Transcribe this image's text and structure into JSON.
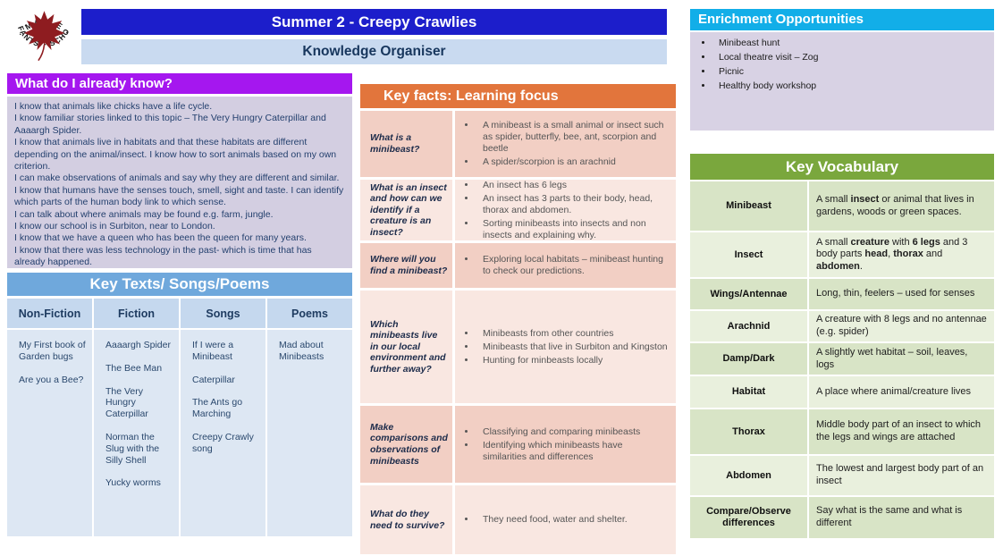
{
  "colors": {
    "title_blue": "#1c1ecb",
    "subtitle_blue": "#c9daf0",
    "purple": "#a517ef",
    "lavender": "#d3cee1",
    "texts_banner_blue": "#6fa8dc",
    "orange": "#e2753c",
    "facts_row_dark": "#f2cfc4",
    "facts_row_light": "#f9e7e1",
    "cyan": "#12aee8",
    "green": "#7aa73d",
    "vocab_row_dark": "#d8e4c6",
    "vocab_row_light": "#e9f0dd",
    "leaf_red": "#8e1c20"
  },
  "logo": {
    "arc_top": "· MAPLE ·",
    "arc_bottom": "INFANTS' · SCHOOL"
  },
  "header": {
    "title": "Summer 2 - Creepy Crawlies",
    "subtitle": "Knowledge Organiser"
  },
  "already_know": {
    "title": "What do I already know?",
    "lines": [
      "I know that animals like chicks have a life cycle.",
      "I know familiar stories linked to this topic – The Very Hungry Caterpillar and Aaaargh Spider.",
      "I know that animals live in habitats and that these habitats are different depending on the animal/insect. I know how to sort animals based on my own criterion.",
      "I can make observations of animals and say why they are different and similar.",
      "I know that humans have the senses touch, smell, sight and taste. I can identify which parts of the human body link to which sense.",
      "I can talk about where animals may be found e.g. farm, jungle.",
      "I know our school is in Surbiton, near to London.",
      "I know that we have a queen who has been the queen for many years.",
      "I know that there was less technology in the past- which is time that has already happened."
    ]
  },
  "key_texts": {
    "title": "Key Texts/ Songs/Poems",
    "columns": [
      {
        "header": "Non-Fiction",
        "items": [
          "My First book of Garden bugs",
          "Are you a Bee?"
        ]
      },
      {
        "header": "Fiction",
        "items": [
          "Aaaargh Spider",
          "The Bee Man",
          "The Very Hungry Caterpillar",
          "Norman the Slug with the Silly Shell",
          "Yucky worms"
        ]
      },
      {
        "header": "Songs",
        "items": [
          "If I were a Minibeast",
          "Caterpillar",
          "The Ants go Marching",
          "Creepy Crawly song"
        ]
      },
      {
        "header": "Poems",
        "items": [
          "Mad about Minibeasts"
        ]
      }
    ]
  },
  "key_facts": {
    "title": "Key facts: Learning focus",
    "rows": [
      {
        "question": "What is a minibeast?",
        "bullets": [
          "A minibeast is a small animal or insect such as spider, butterfly, bee, ant, scorpion and beetle",
          "A spider/scorpion is an arachnid"
        ]
      },
      {
        "question": "What is an insect and how can we identify if a creature is an insect?",
        "bullets": [
          "An insect has 6 legs",
          "An insect has 3 parts to their body, head, thorax and abdomen.",
          "Sorting minibeasts into insects and non insects and explaining why."
        ]
      },
      {
        "question": "Where will you find a minibeast?",
        "bullets": [
          "Exploring local habitats – minibeast hunting to check our predictions."
        ]
      },
      {
        "question": "Which minibeasts live in our local environment and further away?",
        "bullets": [
          "Minibeasts from other countries",
          "Minibeasts that live in Surbiton and Kingston",
          "Hunting for minbeasts locally"
        ]
      },
      {
        "question": "Make comparisons and observations of minibeasts",
        "bullets": [
          "Classifying and comparing minibeasts",
          "Identifying which minibeasts have similarities and differences"
        ]
      },
      {
        "question": "What do they need to survive?",
        "bullets": [
          "They need food, water and shelter."
        ]
      }
    ]
  },
  "enrichment": {
    "title": "Enrichment Opportunities",
    "items": [
      "Minibeast hunt",
      "Local theatre visit – Zog",
      "Picnic",
      "Healthy body workshop"
    ]
  },
  "vocabulary": {
    "title": "Key Vocabulary",
    "rows": [
      {
        "term": "Minibeast",
        "definition": [
          {
            "t": "A small "
          },
          {
            "t": "insect",
            "b": true
          },
          {
            "t": " or animal that lives in gardens, woods or green spaces."
          }
        ]
      },
      {
        "term": "Insect",
        "definition": [
          {
            "t": "A small "
          },
          {
            "t": "creature",
            "b": true
          },
          {
            "t": " with "
          },
          {
            "t": "6 legs",
            "b": true
          },
          {
            "t": " and 3 body parts "
          },
          {
            "t": "head",
            "b": true
          },
          {
            "t": ", "
          },
          {
            "t": "thorax",
            "b": true
          },
          {
            "t": " and "
          },
          {
            "t": "abdomen",
            "b": true
          },
          {
            "t": "."
          }
        ]
      },
      {
        "term": "Wings/Antennae",
        "definition": [
          {
            "t": "Long, thin, feelers – used for senses"
          }
        ]
      },
      {
        "term": "Arachnid",
        "definition": [
          {
            "t": "A creature with 8 legs and no antennae (e.g. spider)"
          }
        ]
      },
      {
        "term": "Damp/Dark",
        "definition": [
          {
            "t": "A slightly wet habitat – soil, leaves, logs"
          }
        ]
      },
      {
        "term": "Habitat",
        "definition": [
          {
            "t": "A place where animal/creature lives"
          }
        ]
      },
      {
        "term": "Thorax",
        "definition": [
          {
            "t": "Middle body part of an insect to which the legs and wings are attached"
          }
        ]
      },
      {
        "term": "Abdomen",
        "definition": [
          {
            "t": "The lowest and largest body part of an insect"
          }
        ]
      },
      {
        "term": "Compare/Observe differences",
        "definition": [
          {
            "t": "Say what is the same and what is different"
          }
        ]
      }
    ]
  }
}
